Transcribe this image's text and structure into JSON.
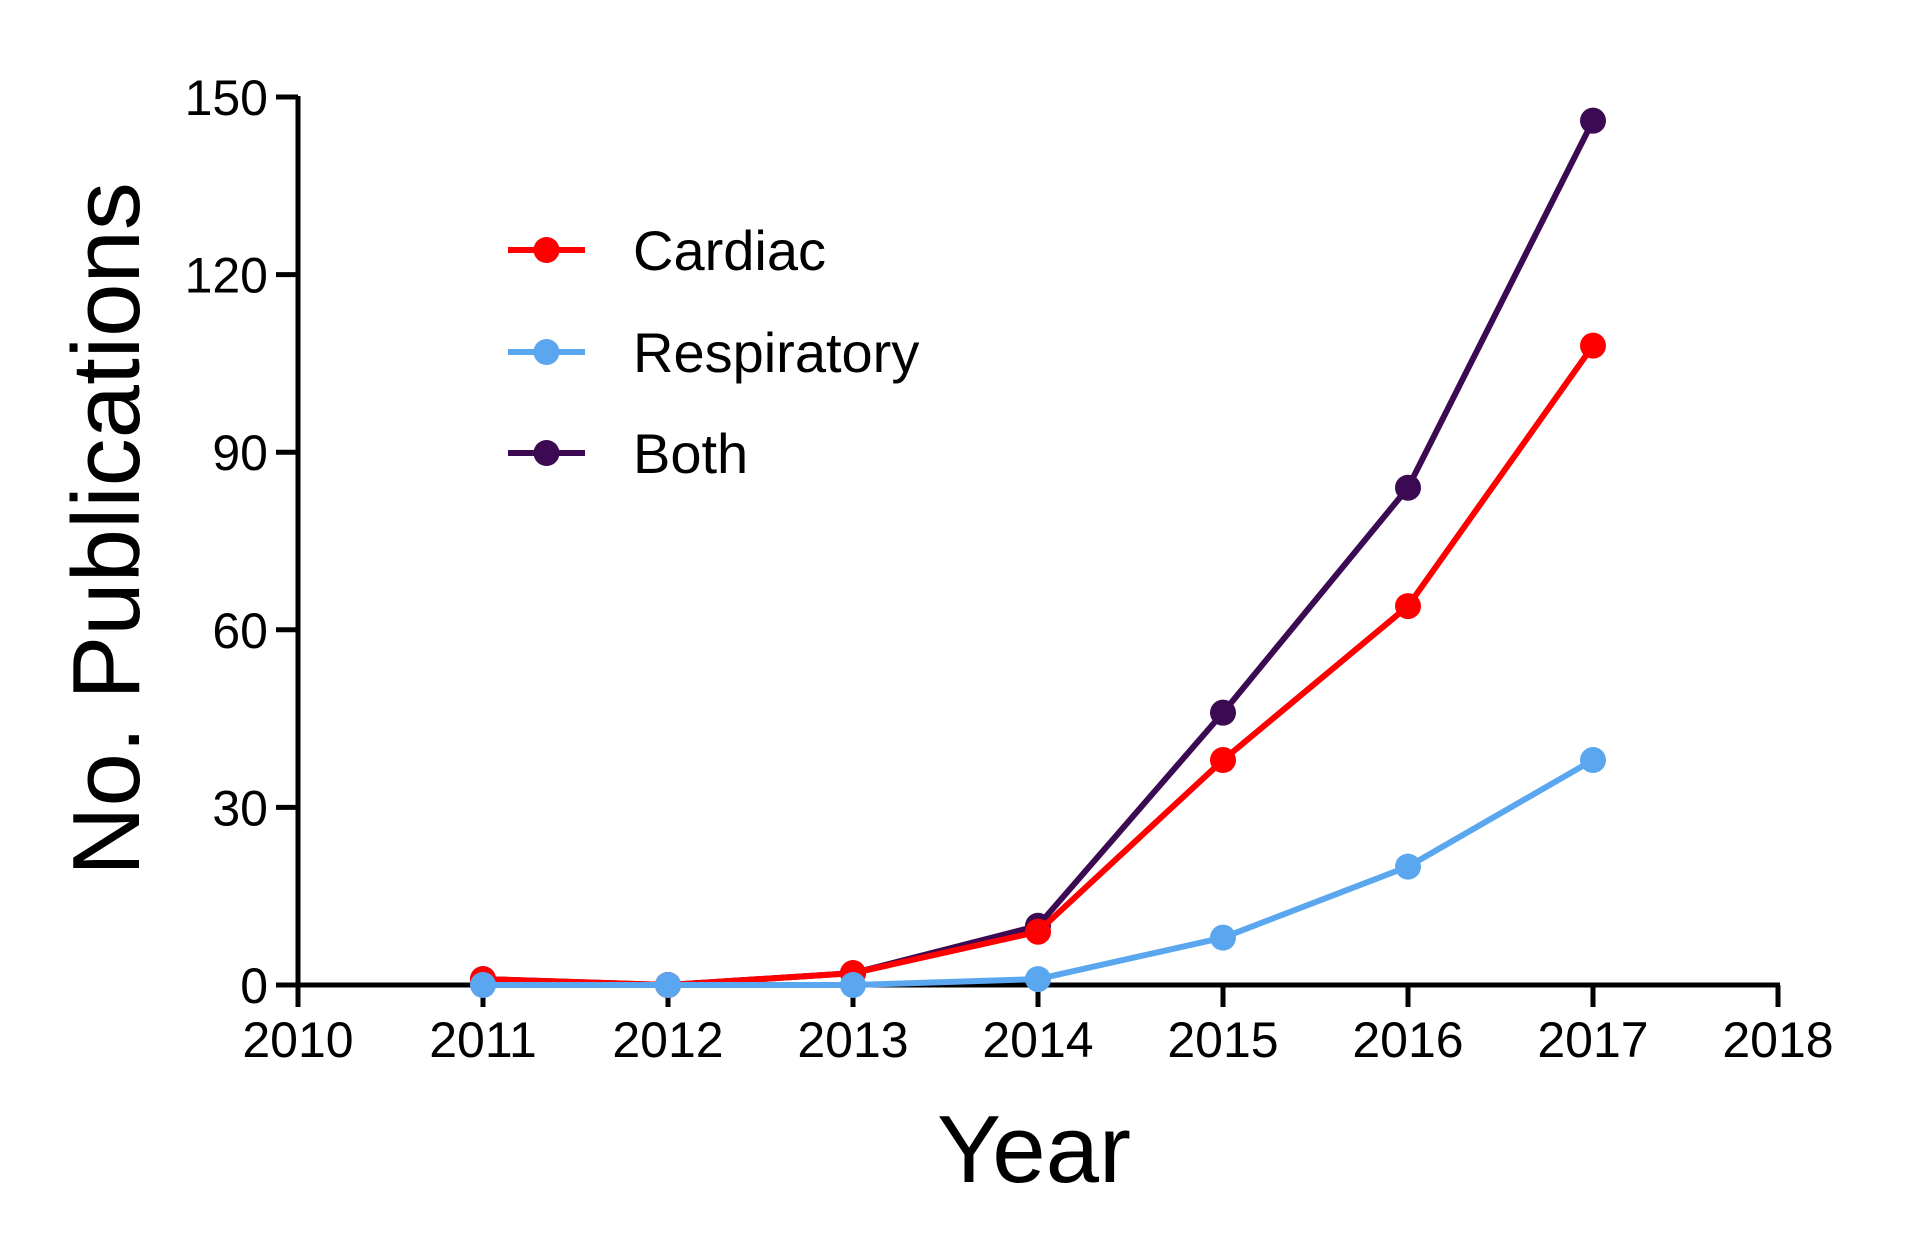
{
  "chart_data": {
    "type": "line",
    "title": "",
    "xlabel": "Year",
    "ylabel": "No. Publications",
    "xlim": [
      2010,
      2018
    ],
    "ylim": [
      0,
      150
    ],
    "xticks": [
      "2010",
      "2011",
      "2012",
      "2013",
      "2014",
      "2015",
      "2016",
      "2017",
      "2018"
    ],
    "yticks": [
      "0",
      "30",
      "60",
      "90",
      "120",
      "150"
    ],
    "grid": false,
    "legend_position": "top-left",
    "x": [
      2011,
      2012,
      2013,
      2014,
      2015,
      2016,
      2017
    ],
    "series": [
      {
        "name": "Both",
        "color": "#3b0a52",
        "values": [
          1,
          0,
          2,
          10,
          46,
          84,
          146
        ]
      },
      {
        "name": "Cardiac",
        "color": "#ff0000",
        "values": [
          1,
          0,
          2,
          9,
          38,
          64,
          108
        ]
      },
      {
        "name": "Respiratory",
        "color": "#5aa7f0",
        "values": [
          0,
          0,
          0,
          1,
          8,
          20,
          38
        ]
      }
    ],
    "legend_order": [
      "Cardiac",
      "Respiratory",
      "Both"
    ]
  }
}
